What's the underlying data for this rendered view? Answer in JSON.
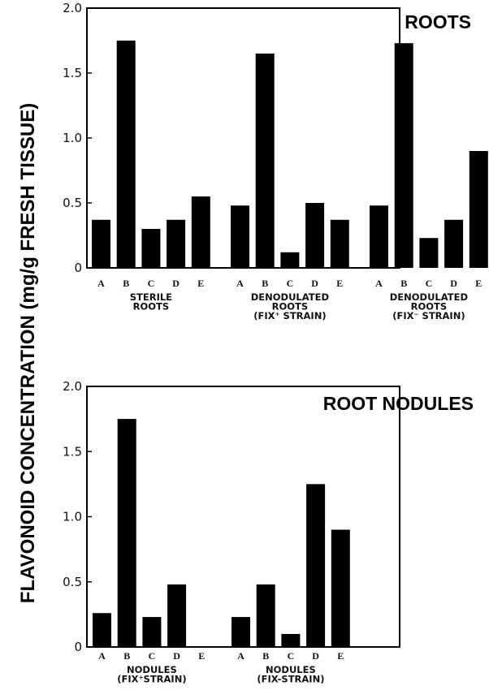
{
  "ylabel": "FLAVONOID CONCENTRATION (mg/g FRESH TISSUE)",
  "chart_data": [
    {
      "type": "bar",
      "title": "ROOTS",
      "ylabel": "FLAVONOID CONCENTRATION (mg/g FRESH TISSUE)",
      "ylim": [
        0,
        2.0
      ],
      "yticks": [
        "0",
        "0.5",
        "1.0",
        "1.5",
        "2.0"
      ],
      "groups": [
        {
          "label_lines": [
            "STERILE",
            "ROOTS"
          ],
          "categories": [
            "A",
            "B",
            "C",
            "D",
            "E"
          ],
          "values": [
            0.37,
            1.75,
            0.3,
            0.37,
            0.55
          ]
        },
        {
          "label_lines": [
            "DENODULATED",
            "ROOTS",
            "(FIX⁺ STRAIN)"
          ],
          "categories": [
            "A",
            "B",
            "C",
            "D",
            "E"
          ],
          "values": [
            0.48,
            1.65,
            0.12,
            0.5,
            0.37
          ]
        },
        {
          "label_lines": [
            "DENODULATED",
            "ROOTS",
            "(FIX⁻ STRAIN)"
          ],
          "categories": [
            "A",
            "B",
            "C",
            "D",
            "E"
          ],
          "values": [
            0.48,
            1.73,
            0.23,
            0.37,
            0.9
          ]
        }
      ]
    },
    {
      "type": "bar",
      "title": "ROOT NODULES",
      "ylabel": "FLAVONOID CONCENTRATION (mg/g FRESH TISSUE)",
      "ylim": [
        0,
        2.0
      ],
      "yticks": [
        "0",
        "0.5",
        "1.0",
        "1.5",
        "2.0"
      ],
      "groups": [
        {
          "label_lines": [
            "NODULES",
            "(FIX⁺STRAIN)"
          ],
          "categories": [
            "A",
            "B",
            "C",
            "D",
            "E"
          ],
          "values": [
            0.26,
            1.75,
            0.23,
            0.48,
            0
          ]
        },
        {
          "label_lines": [
            "NODULES",
            "(FIX-STRAIN)"
          ],
          "categories": [
            "A",
            "B",
            "C",
            "D",
            "E"
          ],
          "values": [
            0.23,
            0.48,
            0.1,
            1.25,
            0.9
          ]
        }
      ]
    }
  ]
}
